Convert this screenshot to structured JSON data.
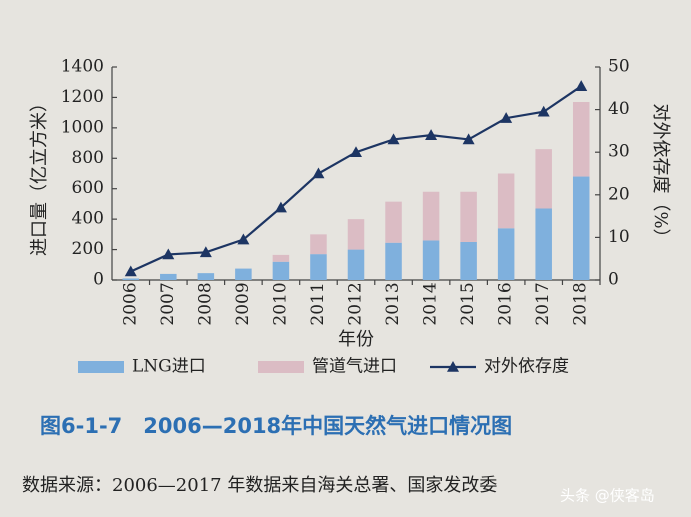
{
  "chart_data": {
    "type": "bar-line",
    "y_label": "进口量（亿立方米）",
    "y2_label": "对外依存度（%）",
    "x_label": "年份",
    "categories": [
      "2006",
      "2007",
      "2008",
      "2009",
      "2010",
      "2011",
      "2012",
      "2013",
      "2014",
      "2015",
      "2016",
      "2017",
      "2018"
    ],
    "series": [
      {
        "name": "LNG进口",
        "color": "#7fb0dd",
        "values": [
          10,
          40,
          45,
          75,
          120,
          170,
          200,
          245,
          260,
          250,
          340,
          470,
          680
        ]
      },
      {
        "name": "管道气进口",
        "color": "#dbbcc4",
        "values": [
          0,
          0,
          0,
          0,
          45,
          130,
          200,
          270,
          320,
          330,
          360,
          390,
          490
        ]
      },
      {
        "name": "对外依存度",
        "color": "#1d3563",
        "axis": "y2",
        "values": [
          2,
          6,
          6.5,
          9.5,
          17,
          25,
          30,
          33,
          34,
          33,
          38,
          39.5,
          45.5
        ]
      }
    ],
    "ylim": [
      0,
      1400
    ],
    "yticks": [
      0,
      200,
      400,
      600,
      800,
      1000,
      1200,
      1400
    ],
    "y2lim": [
      0,
      50
    ],
    "y2ticks": [
      0,
      10,
      20,
      30,
      40,
      50
    ],
    "grid": false
  },
  "caption": "图6-1-7　2006—2018年中国天然气进口情况图",
  "source": "数据来源：2006—2017 年数据来自海关总署、国家发改委",
  "watermark": "头条 @侠客岛"
}
